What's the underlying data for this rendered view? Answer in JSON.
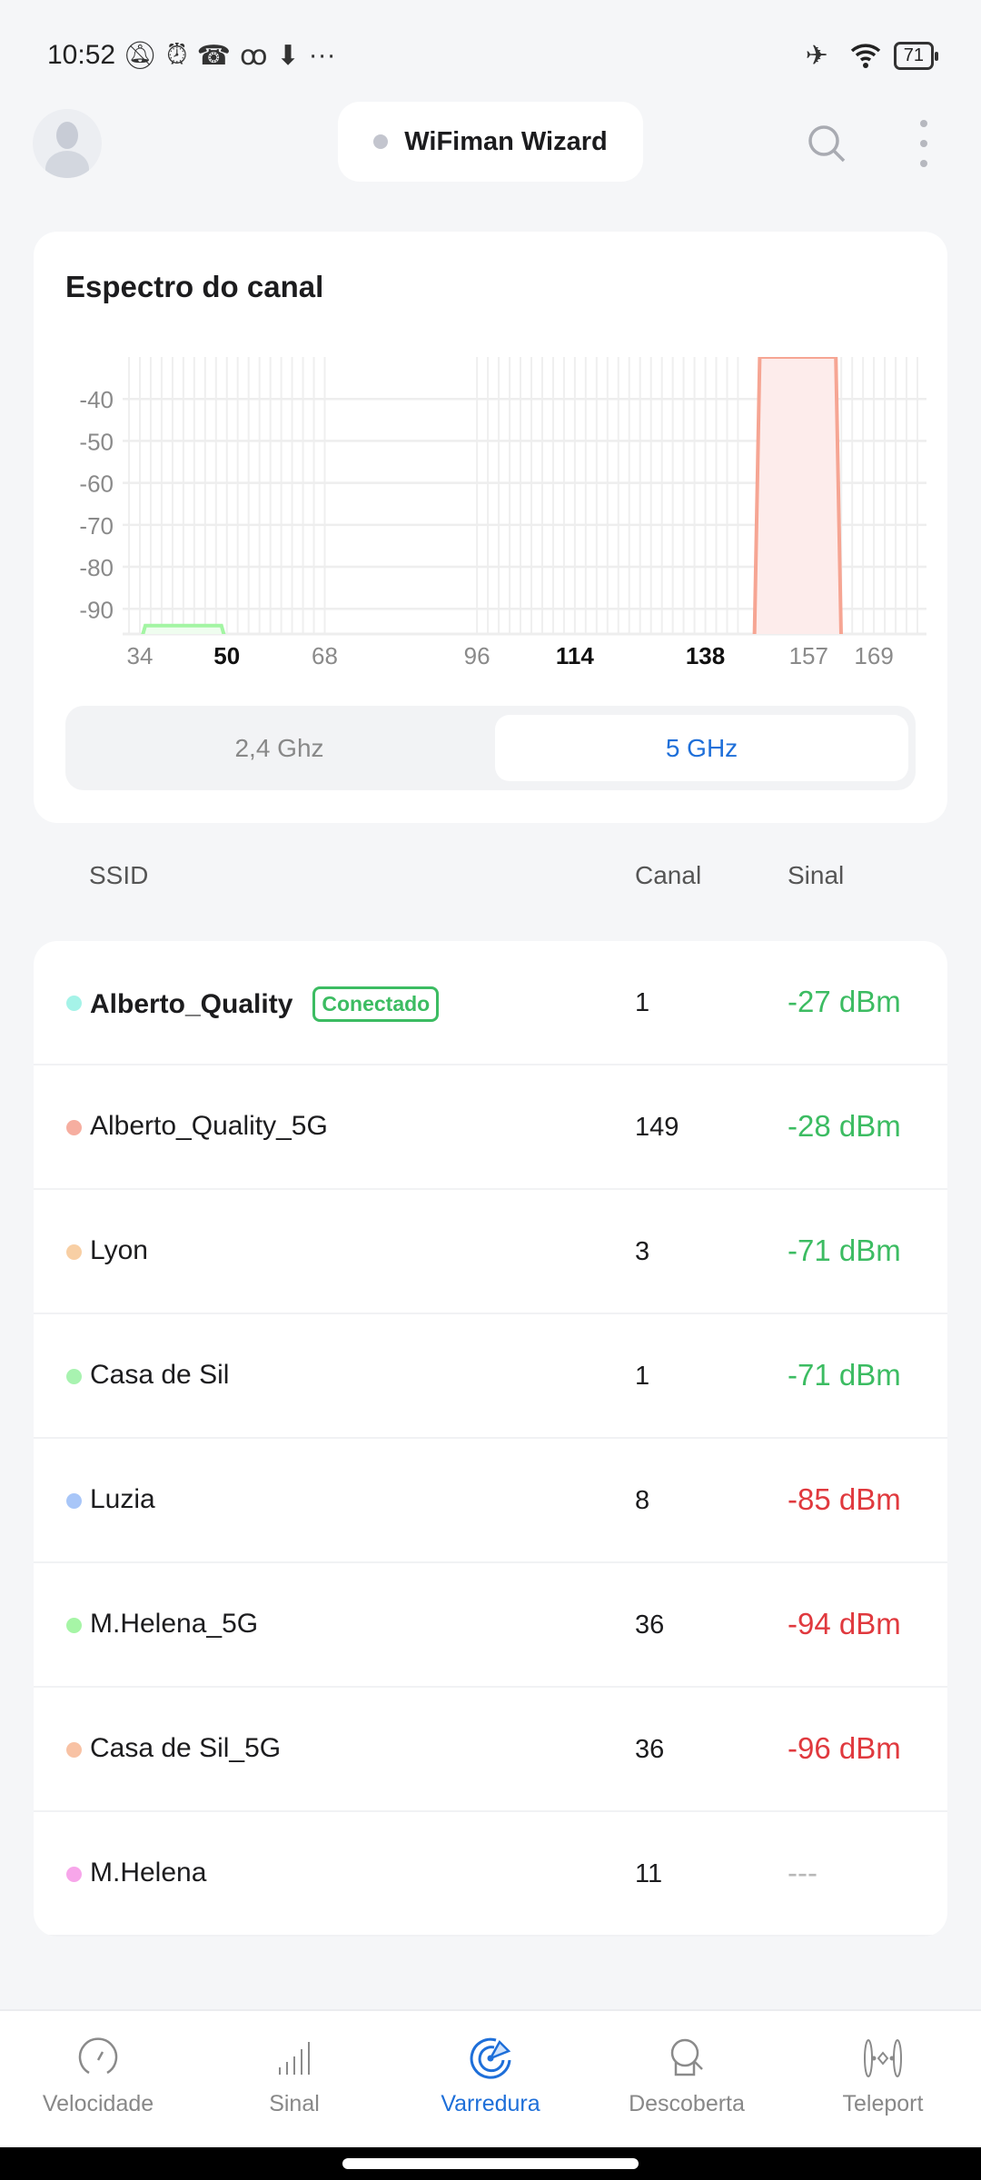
{
  "status_bar": {
    "time": "10:52",
    "battery": "71",
    "icons": [
      "bell-off-icon",
      "alarm-icon",
      "missed-call-icon",
      "voicemail-icon",
      "download-icon",
      "more-icon",
      "airplane-icon",
      "wifi-icon",
      "battery-icon"
    ]
  },
  "header": {
    "title": "WiFiman Wizard",
    "status_dot_color": "#c3c5ce"
  },
  "spectrum": {
    "title": "Espectro do canal",
    "bands": [
      "2,4 Ghz",
      "5 GHz"
    ],
    "selected_band": "5 GHz"
  },
  "chart_data": {
    "type": "area",
    "xlabel": "",
    "ylabel": "",
    "x_ticks": [
      {
        "label": "34",
        "v": 34,
        "bold": false
      },
      {
        "label": "50",
        "v": 50,
        "bold": true
      },
      {
        "label": "68",
        "v": 68,
        "bold": false
      },
      {
        "label": "96",
        "v": 96,
        "bold": false
      },
      {
        "label": "114",
        "v": 114,
        "bold": true
      },
      {
        "label": "138",
        "v": 138,
        "bold": true
      },
      {
        "label": "157",
        "v": 157,
        "bold": false
      },
      {
        "label": "169",
        "v": 169,
        "bold": false
      }
    ],
    "y_ticks": [
      -40,
      -50,
      -60,
      -70,
      -80,
      -90
    ],
    "xlim": [
      32.5,
      177
    ],
    "ylim": [
      -96,
      -30
    ],
    "grid": true,
    "series": [
      {
        "name": "Alberto_Quality_5G",
        "center": 155,
        "halfwidth": 8,
        "signal": -28,
        "color": "#f6a593",
        "fill": "#fdeceb"
      },
      {
        "name": "M.Helena_5G",
        "center": 42,
        "halfwidth": 8,
        "signal": -94,
        "color": "#a3f5a3",
        "fill": "#effdef"
      },
      {
        "name": "Casa de Sil_5G",
        "center": 42,
        "halfwidth": 8,
        "signal": -96,
        "color": "#f7c0a2",
        "fill": "#fff3ec"
      }
    ]
  },
  "columns": {
    "ssid": "SSID",
    "channel": "Canal",
    "signal": "Sinal"
  },
  "networks": [
    {
      "ssid": "Alberto_Quality",
      "badge": "Conectado",
      "channel": "1",
      "signal": "-27 dBm",
      "dot": "#a5f3e8",
      "signal_color": "#3cbc62",
      "bold": true
    },
    {
      "ssid": "Alberto_Quality_5G",
      "channel": "149",
      "signal": "-28 dBm",
      "dot": "#f6aea0",
      "signal_color": "#3cbc62"
    },
    {
      "ssid": "Lyon",
      "channel": "3",
      "signal": "-71 dBm",
      "dot": "#f8cfa4",
      "signal_color": "#3cbc62"
    },
    {
      "ssid": "Casa de Sil",
      "channel": "1",
      "signal": "-71 dBm",
      "dot": "#a8f3b0",
      "signal_color": "#3cbc62"
    },
    {
      "ssid": "Luzia",
      "channel": "8",
      "signal": "-85 dBm",
      "dot": "#a8c6f8",
      "signal_color": "#e0393e"
    },
    {
      "ssid": "M.Helena_5G",
      "channel": "36",
      "signal": "-94 dBm",
      "dot": "#a6f5a6",
      "signal_color": "#e0393e"
    },
    {
      "ssid": "Casa de Sil_5G",
      "channel": "36",
      "signal": "-96 dBm",
      "dot": "#f8c2a4",
      "signal_color": "#e0393e"
    },
    {
      "ssid": "M.Helena",
      "channel": "11",
      "signal": "---",
      "dot": "#f7a6ea",
      "signal_color": "#b8b8b8"
    }
  ],
  "nav": [
    {
      "label": "Velocidade",
      "icon": "speedometer-icon"
    },
    {
      "label": "Sinal",
      "icon": "signal-bars-icon"
    },
    {
      "label": "Varredura",
      "icon": "radar-icon",
      "active": true
    },
    {
      "label": "Descoberta",
      "icon": "device-search-icon"
    },
    {
      "label": "Teleport",
      "icon": "teleport-icon"
    }
  ],
  "accent": "#1e6fd9"
}
